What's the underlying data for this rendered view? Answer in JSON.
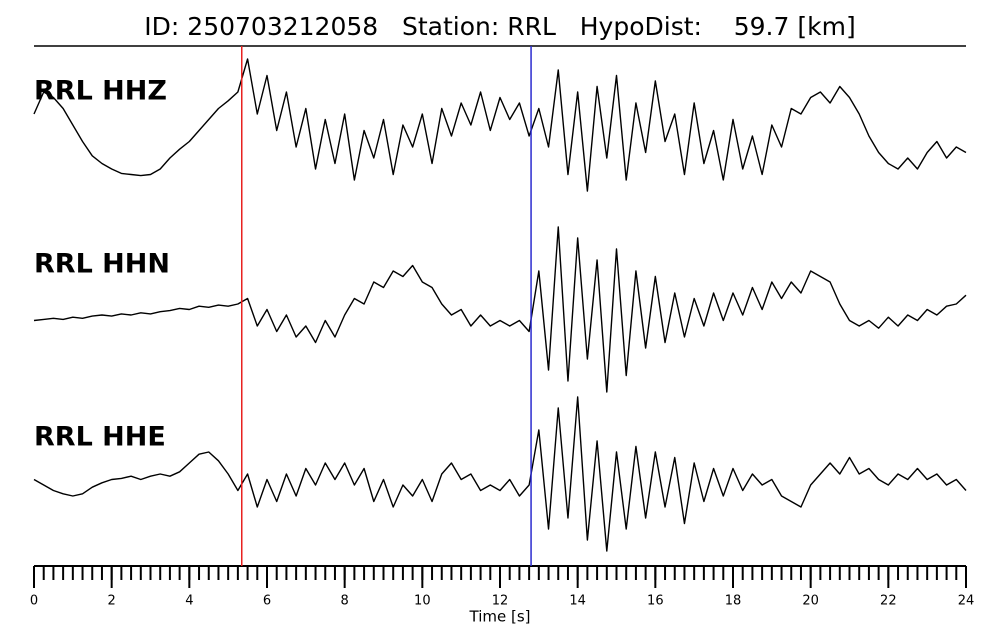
{
  "chart_data": {
    "type": "line",
    "title": "ID: 250703212058   Station: RRL   HypoDist:    59.7 [km]",
    "xlabel": "Time [s]",
    "xlim": [
      0,
      24
    ],
    "xticks": [
      0,
      2,
      4,
      6,
      8,
      10,
      12,
      14,
      16,
      18,
      20,
      22,
      24
    ],
    "xticks_minor": [
      0,
      0.25,
      0.5,
      0.75,
      1,
      1.25,
      1.5,
      1.75,
      2,
      2.25,
      2.5,
      2.75,
      3,
      3.25,
      3.5,
      3.75,
      4,
      4.25,
      4.5,
      4.75,
      5,
      5.25,
      5.5,
      5.75,
      6,
      6.25,
      6.5,
      6.75,
      7,
      7.25,
      7.5,
      7.75,
      8,
      8.25,
      8.5,
      8.75,
      9,
      9.25,
      9.5,
      9.75,
      10,
      10.25,
      10.5,
      10.75,
      11,
      11.25,
      11.5,
      11.75,
      12,
      12.25,
      12.5,
      12.75,
      13,
      13.25,
      13.5,
      13.75,
      14,
      14.25,
      14.5,
      14.75,
      15,
      15.25,
      15.5,
      15.75,
      16,
      16.25,
      16.5,
      16.75,
      17,
      17.25,
      17.5,
      17.75,
      18,
      18.25,
      18.5,
      18.75,
      19,
      19.25,
      19.5,
      19.75,
      20,
      20.25,
      20.5,
      20.75,
      21,
      21.25,
      21.5,
      21.75,
      22,
      22.25,
      22.5,
      22.75,
      23,
      23.25,
      23.5,
      23.75,
      24
    ],
    "ylim": [
      -1,
      1
    ],
    "label_color": "#4c9a00",
    "line_color": "#000000",
    "picks": [
      {
        "x": 5.35,
        "color": "#e8211f"
      },
      {
        "x": 12.8,
        "color": "#2b2bcf"
      }
    ],
    "x": [
      0,
      0.25,
      0.5,
      0.75,
      1,
      1.25,
      1.5,
      1.75,
      2,
      2.25,
      2.5,
      2.75,
      3,
      3.25,
      3.5,
      3.75,
      4,
      4.25,
      4.5,
      4.75,
      5,
      5.25,
      5.5,
      5.75,
      6,
      6.25,
      6.5,
      6.75,
      7,
      7.25,
      7.5,
      7.75,
      8,
      8.25,
      8.5,
      8.75,
      9,
      9.25,
      9.5,
      9.75,
      10,
      10.25,
      10.5,
      10.75,
      11,
      11.25,
      11.5,
      11.75,
      12,
      12.25,
      12.5,
      12.75,
      13,
      13.25,
      13.5,
      13.75,
      14,
      14.25,
      14.5,
      14.75,
      15,
      15.25,
      15.5,
      15.75,
      16,
      16.25,
      16.5,
      16.75,
      17,
      17.25,
      17.5,
      17.75,
      18,
      18.25,
      18.5,
      18.75,
      19,
      19.25,
      19.5,
      19.75,
      20,
      20.25,
      20.5,
      20.75,
      21,
      21.25,
      21.5,
      21.75,
      22,
      22.25,
      22.5,
      22.75,
      23,
      23.25,
      23.5,
      23.75,
      24
    ],
    "series": [
      {
        "name": "RRL HHZ",
        "values": [
          0.1,
          0.3,
          0.25,
          0.15,
          0.0,
          -0.15,
          -0.28,
          -0.35,
          -0.4,
          -0.44,
          -0.45,
          -0.46,
          -0.45,
          -0.4,
          -0.3,
          -0.22,
          -0.15,
          -0.05,
          0.05,
          0.15,
          0.22,
          0.3,
          0.6,
          0.1,
          0.45,
          -0.05,
          0.3,
          -0.2,
          0.15,
          -0.4,
          0.05,
          -0.35,
          0.1,
          -0.5,
          -0.05,
          -0.3,
          0.05,
          -0.45,
          0.0,
          -0.2,
          0.1,
          -0.35,
          0.15,
          -0.1,
          0.2,
          0.0,
          0.3,
          -0.05,
          0.25,
          0.05,
          0.2,
          -0.1,
          0.15,
          -0.2,
          0.5,
          -0.45,
          0.3,
          -0.6,
          0.35,
          -0.3,
          0.45,
          -0.5,
          0.2,
          -0.25,
          0.4,
          -0.15,
          0.1,
          -0.45,
          0.2,
          -0.35,
          -0.05,
          -0.5,
          0.05,
          -0.4,
          -0.1,
          -0.45,
          0.0,
          -0.2,
          0.15,
          0.1,
          0.25,
          0.3,
          0.2,
          0.35,
          0.25,
          0.1,
          -0.1,
          -0.25,
          -0.35,
          -0.4,
          -0.3,
          -0.4,
          -0.25,
          -0.15,
          -0.3,
          -0.2,
          -0.25
        ]
      },
      {
        "name": "RRL HHN",
        "values": [
          -0.05,
          -0.04,
          -0.03,
          -0.04,
          -0.02,
          -0.03,
          -0.01,
          0.0,
          -0.01,
          0.01,
          0.0,
          0.02,
          0.01,
          0.03,
          0.04,
          0.06,
          0.05,
          0.08,
          0.07,
          0.09,
          0.08,
          0.1,
          0.15,
          -0.1,
          0.05,
          -0.15,
          0.0,
          -0.2,
          -0.1,
          -0.25,
          -0.05,
          -0.2,
          0.0,
          0.15,
          0.1,
          0.3,
          0.25,
          0.4,
          0.35,
          0.45,
          0.3,
          0.25,
          0.1,
          0.0,
          0.05,
          -0.1,
          0.0,
          -0.1,
          -0.05,
          -0.1,
          -0.05,
          -0.15,
          0.4,
          -0.5,
          0.8,
          -0.6,
          0.7,
          -0.4,
          0.5,
          -0.7,
          0.6,
          -0.55,
          0.4,
          -0.3,
          0.35,
          -0.25,
          0.2,
          -0.2,
          0.15,
          -0.1,
          0.2,
          -0.05,
          0.2,
          0.0,
          0.25,
          0.05,
          0.3,
          0.15,
          0.3,
          0.2,
          0.4,
          0.35,
          0.3,
          0.1,
          -0.05,
          -0.1,
          -0.05,
          -0.12,
          -0.02,
          -0.1,
          0.0,
          -0.05,
          0.05,
          0.0,
          0.08,
          0.1,
          0.18
        ]
      },
      {
        "name": "RRL HHE",
        "values": [
          0.05,
          0.0,
          -0.05,
          -0.08,
          -0.1,
          -0.08,
          -0.02,
          0.02,
          0.05,
          0.06,
          0.08,
          0.05,
          0.08,
          0.1,
          0.08,
          0.12,
          0.2,
          0.28,
          0.3,
          0.22,
          0.1,
          -0.05,
          0.1,
          -0.2,
          0.05,
          -0.15,
          0.1,
          -0.1,
          0.15,
          0.0,
          0.2,
          0.05,
          0.2,
          0.0,
          0.15,
          -0.15,
          0.05,
          -0.2,
          0.0,
          -0.1,
          0.05,
          -0.15,
          0.1,
          0.2,
          0.05,
          0.1,
          -0.05,
          0.0,
          -0.05,
          0.05,
          -0.1,
          0.0,
          0.5,
          -0.4,
          0.7,
          -0.3,
          0.8,
          -0.5,
          0.4,
          -0.6,
          0.3,
          -0.4,
          0.35,
          -0.3,
          0.3,
          -0.2,
          0.25,
          -0.35,
          0.2,
          -0.15,
          0.15,
          -0.1,
          0.15,
          -0.05,
          0.1,
          0.0,
          0.05,
          -0.1,
          -0.15,
          -0.2,
          0.0,
          0.1,
          0.2,
          0.1,
          0.25,
          0.1,
          0.15,
          0.05,
          0.0,
          0.1,
          0.05,
          0.15,
          0.05,
          0.1,
          0.0,
          0.05,
          -0.05
        ]
      }
    ]
  }
}
